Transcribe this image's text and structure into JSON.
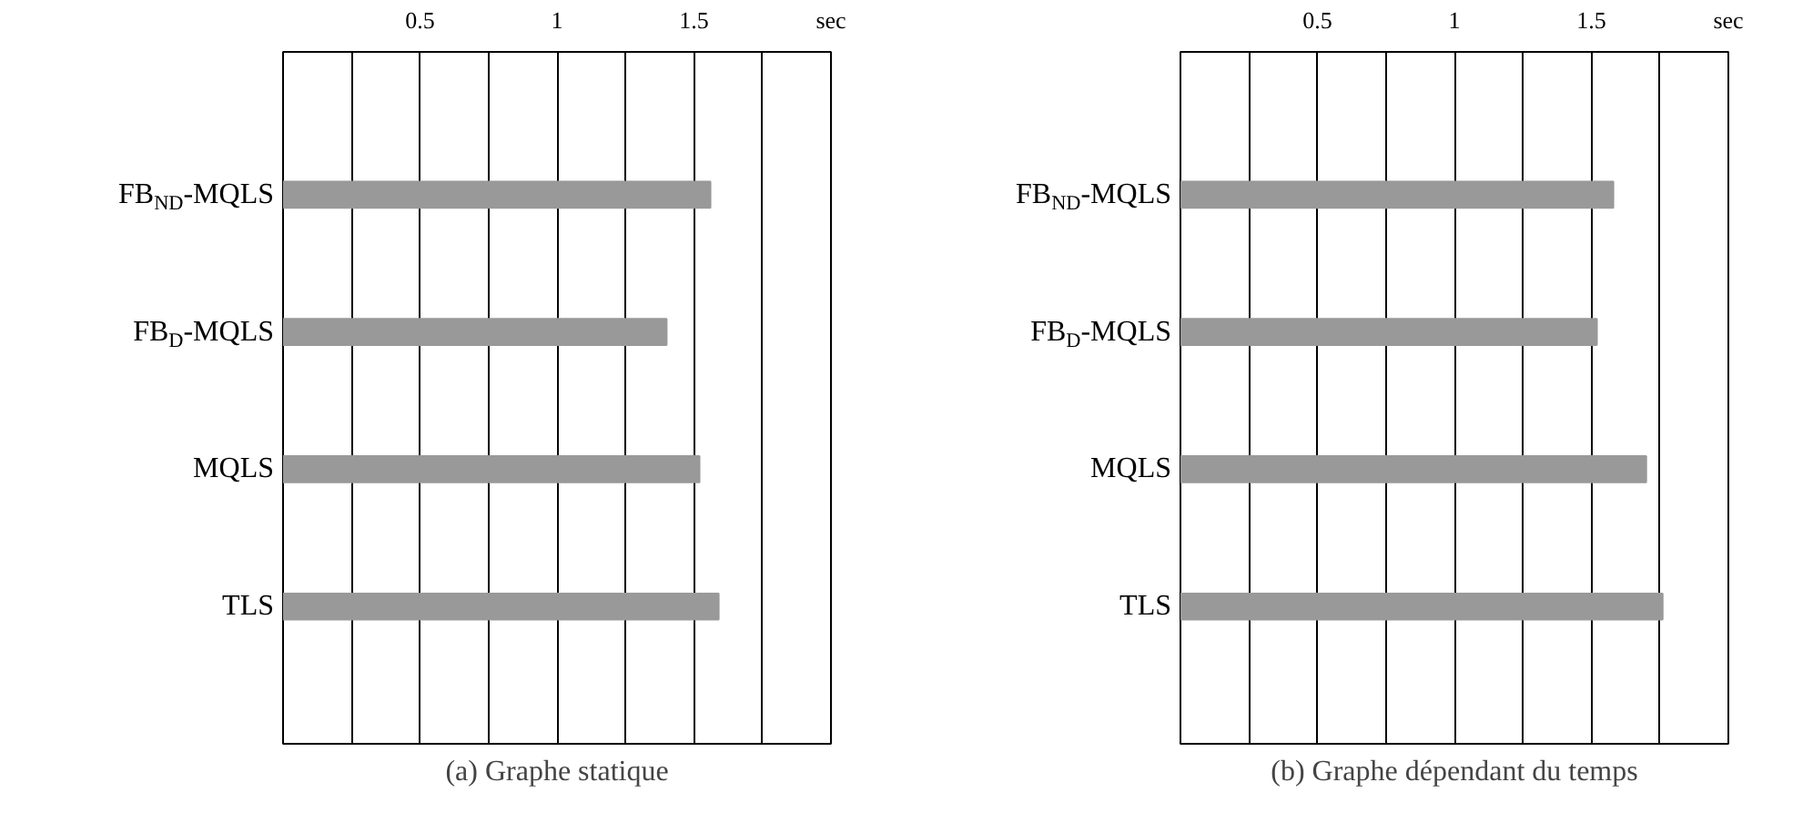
{
  "chart_data": [
    {
      "type": "bar",
      "orientation": "horizontal",
      "title": "(a) Graphe statique",
      "categories": [
        "FB$_{ND}$-MQLS",
        "FB$_{D}$-MQLS",
        "MQLS",
        "TLS"
      ],
      "values": [
        1.56,
        1.4,
        1.52,
        1.59
      ],
      "color": "#999999",
      "xlim": [
        0,
        2
      ],
      "xticks": [
        {
          "value": 0,
          "label": null
        },
        {
          "value": 0.25,
          "label": null
        },
        0.5,
        {
          "value": 0.75,
          "label": null
        },
        1,
        {
          "value": 1.25,
          "label": null
        },
        1.5,
        {
          "value": 1.75,
          "label": null
        },
        {
          "value": 2,
          "label": "sec"
        }
      ],
      "grid": "x"
    },
    {
      "type": "bar",
      "orientation": "horizontal",
      "title": "(b) Graphe dépendant du temps",
      "categories": [
        "FB$_{ND}$-MQLS",
        "FB$_{D}$-MQLS",
        "MQLS",
        "TLS"
      ],
      "values": [
        1.58,
        1.52,
        1.7,
        1.76
      ],
      "color": "#999999",
      "xlim": [
        0,
        2
      ],
      "xticks": [
        {
          "value": 0,
          "label": null
        },
        {
          "value": 0.25,
          "label": null
        },
        0.5,
        {
          "value": 0.75,
          "label": null
        },
        1,
        {
          "value": 1.25,
          "label": null
        },
        1.5,
        {
          "value": 1.75,
          "label": null
        },
        {
          "value": 2,
          "label": "sec"
        }
      ],
      "grid": "x"
    }
  ]
}
